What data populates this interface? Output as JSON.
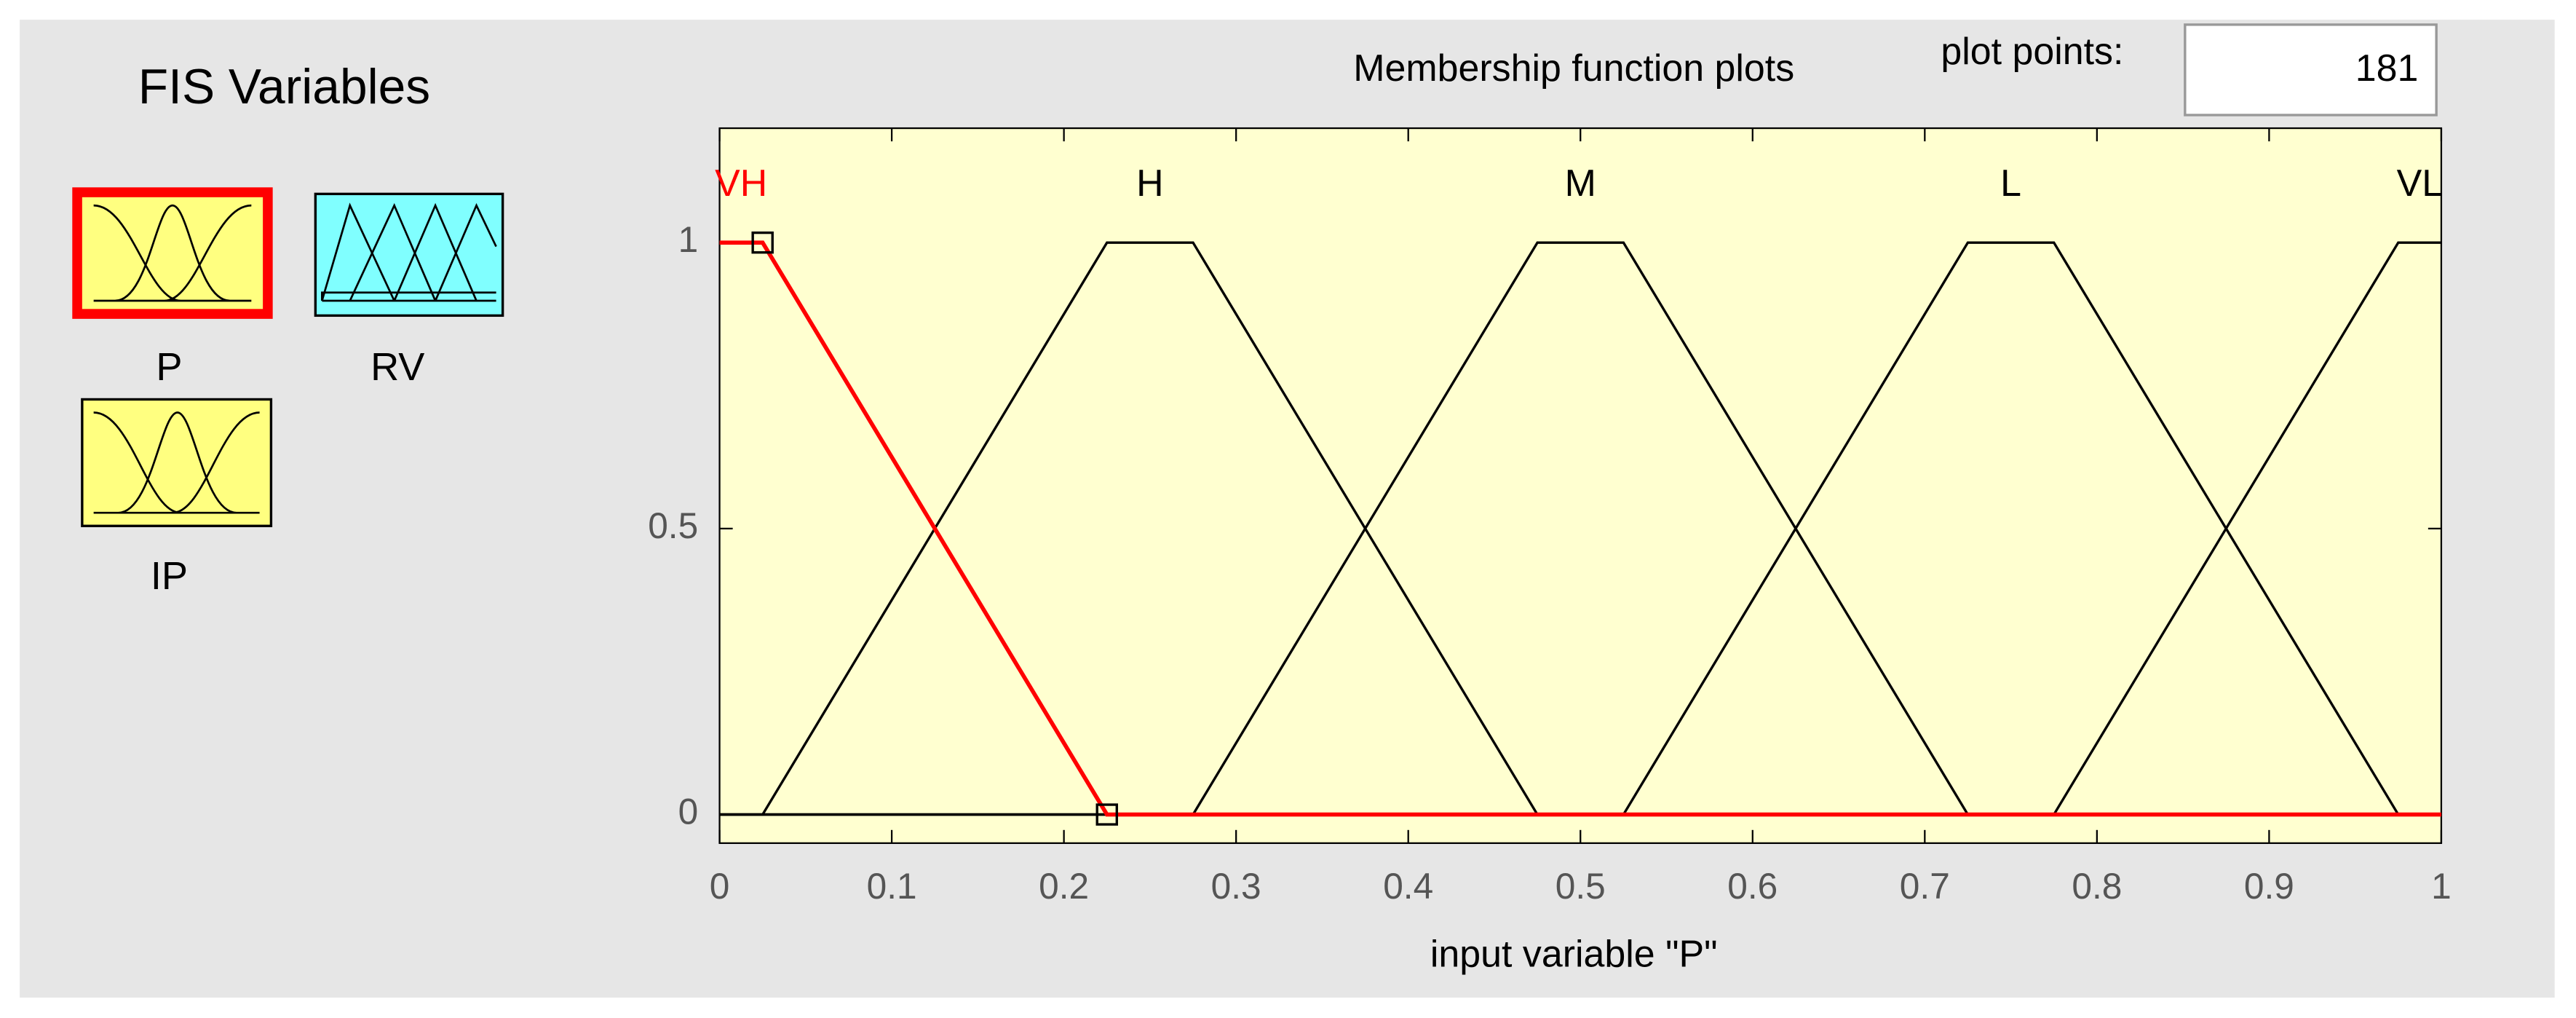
{
  "fis_variables": {
    "title": "FIS Variables",
    "variables": [
      {
        "label": "P"
      },
      {
        "label": "RV"
      },
      {
        "label": "IP"
      }
    ]
  },
  "plot_points": {
    "label": "plot points:",
    "value": 181
  },
  "chart_data": {
    "type": "line",
    "title": "Membership function plots",
    "xlabel": "input variable \"P\"",
    "xlim": [
      0,
      1
    ],
    "ylim": [
      -0.05,
      1.2
    ],
    "xticks": [
      0,
      0.1,
      0.2,
      0.3,
      0.4,
      0.5,
      0.6,
      0.7,
      0.8,
      0.9,
      1
    ],
    "yticks": [
      0,
      0.5,
      1
    ],
    "series": [
      {
        "name": "VH",
        "color": "#ff0000",
        "marker": "square",
        "x": [
          0,
          0.025,
          0.225,
          1
        ],
        "values": [
          1,
          1,
          0,
          0
        ]
      },
      {
        "name": "H",
        "color": "#000000",
        "x": [
          0,
          0.025,
          0.225,
          0.275,
          0.475,
          1
        ],
        "values": [
          0,
          0,
          1,
          1,
          0,
          0
        ]
      },
      {
        "name": "M",
        "color": "#000000",
        "x": [
          0,
          0.275,
          0.475,
          0.525,
          0.725,
          1
        ],
        "values": [
          0,
          0,
          1,
          1,
          0,
          0
        ]
      },
      {
        "name": "L",
        "color": "#000000",
        "x": [
          0,
          0.525,
          0.725,
          0.775,
          0.975,
          1
        ],
        "values": [
          0,
          0,
          1,
          1,
          0,
          0
        ]
      },
      {
        "name": "VL",
        "color": "#000000",
        "x": [
          0,
          0.775,
          0.975,
          1
        ],
        "values": [
          0,
          0,
          1,
          1
        ]
      }
    ]
  }
}
